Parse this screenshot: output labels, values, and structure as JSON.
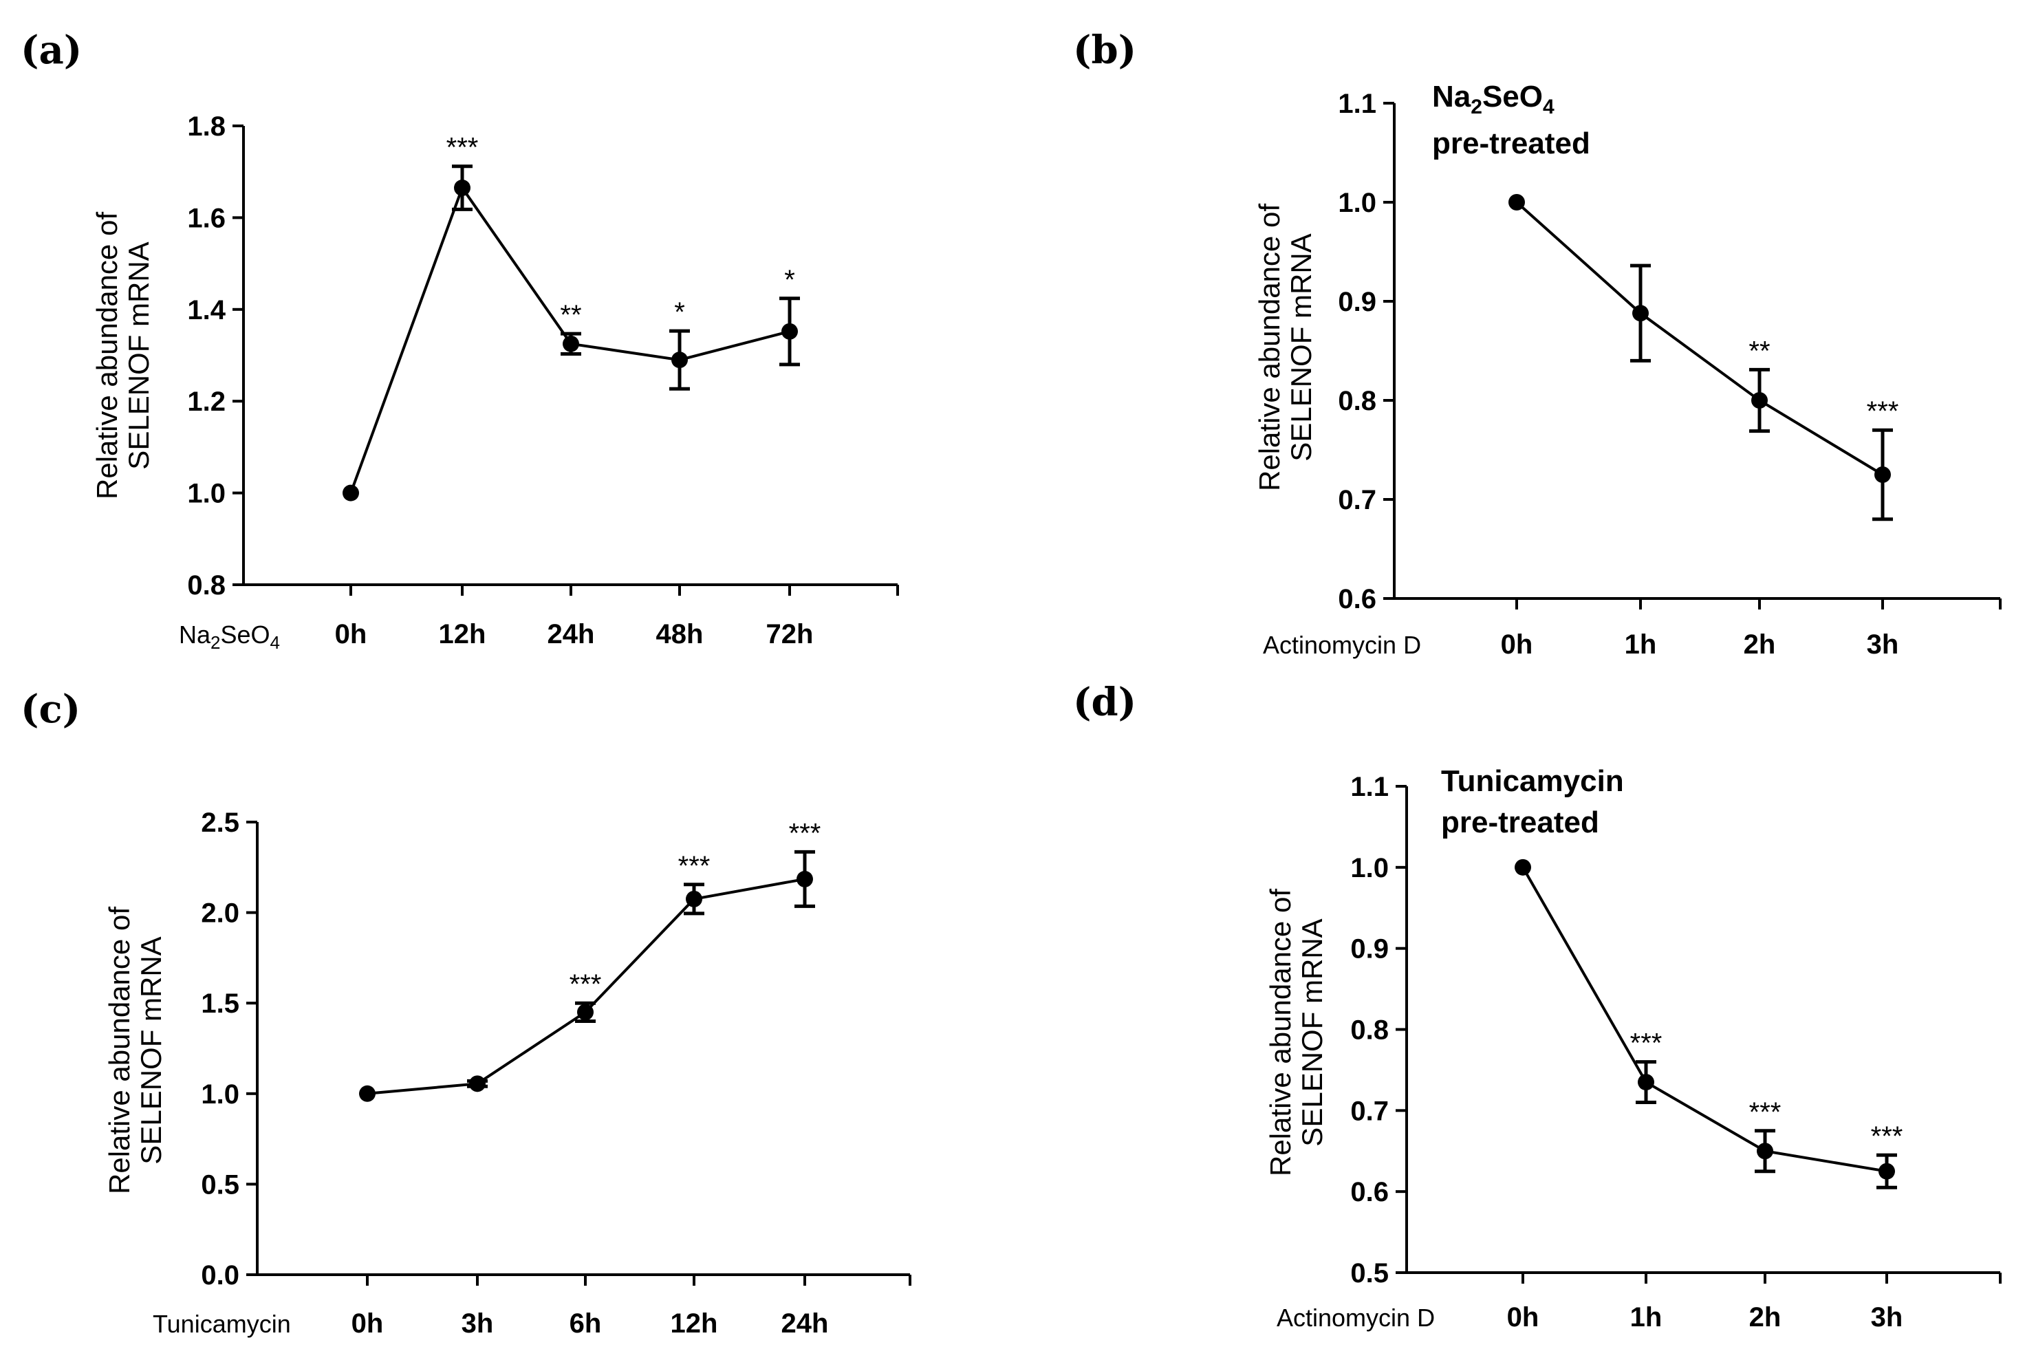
{
  "chart_data": [
    {
      "id": "a",
      "panel_label": "(a)",
      "type": "line",
      "ylabel_lines": [
        "Relative abundance of",
        "SELENOF mRNA"
      ],
      "x_prefix": {
        "main": "Na",
        "sub1": "2",
        "mid": "SeO",
        "sub2": "4"
      },
      "categories": [
        "0h",
        "12h",
        "24h",
        "48h",
        "72h"
      ],
      "values": [
        1.0,
        1.665,
        1.325,
        1.29,
        1.352
      ],
      "errors": [
        0,
        0.047,
        0.022,
        0.063,
        0.072
      ],
      "stars": [
        "",
        "***",
        "**",
        "*",
        "*"
      ],
      "ylim": [
        0.8,
        1.8
      ],
      "yticks": [
        0.8,
        1.0,
        1.2,
        1.4,
        1.6,
        1.8
      ],
      "ytick_labels": [
        "0.8",
        "1.0",
        "1.2",
        "1.4",
        "1.6",
        "1.8"
      ]
    },
    {
      "id": "b",
      "panel_label": "(b)",
      "type": "line",
      "ylabel_lines": [
        "Relative abundance of",
        "SELENOF mRNA"
      ],
      "x_prefix": {
        "main": "Actinomycin D"
      },
      "annotation": {
        "main": "Na",
        "sub1": "2",
        "mid": "SeO",
        "sub2": "4",
        "line2": "pre-treated"
      },
      "categories": [
        "0h",
        "1h",
        "2h",
        "3h"
      ],
      "values": [
        1.0,
        0.888,
        0.8,
        0.725
      ],
      "errors": [
        0,
        0.048,
        0.031,
        0.045
      ],
      "stars": [
        "",
        "",
        "**",
        "***"
      ],
      "ylim": [
        0.6,
        1.1
      ],
      "yticks": [
        0.6,
        0.7,
        0.8,
        0.9,
        1.0,
        1.1
      ],
      "ytick_labels": [
        "0.6",
        "0.7",
        "0.8",
        "0.9",
        "1.0",
        "1.1"
      ]
    },
    {
      "id": "c",
      "panel_label": "(c)",
      "type": "line",
      "ylabel_lines": [
        "Relative abundance of",
        "SELENOF mRNA"
      ],
      "x_prefix": {
        "main": "Tunicamycin"
      },
      "categories": [
        "0h",
        "3h",
        "6h",
        "12h",
        "24h"
      ],
      "values": [
        1.0,
        1.055,
        1.45,
        2.075,
        2.185
      ],
      "errors": [
        0,
        0.015,
        0.05,
        0.08,
        0.15
      ],
      "stars": [
        "",
        "",
        "***",
        "***",
        "***"
      ],
      "ylim": [
        0.0,
        2.5
      ],
      "yticks": [
        0.0,
        0.5,
        1.0,
        1.5,
        2.0,
        2.5
      ],
      "ytick_labels": [
        "0.0",
        "0.5",
        "1.0",
        "1.5",
        "2.0",
        "2.5"
      ]
    },
    {
      "id": "d",
      "panel_label": "(d)",
      "type": "line",
      "ylabel_lines": [
        "Relative abundance of",
        "SELENOF mRNA"
      ],
      "x_prefix": {
        "main": "Actinomycin D"
      },
      "annotation": {
        "main": "Tunicamycin",
        "line2": "pre-treated"
      },
      "categories": [
        "0h",
        "1h",
        "2h",
        "3h"
      ],
      "values": [
        1.0,
        0.735,
        0.65,
        0.625
      ],
      "errors": [
        0,
        0.025,
        0.025,
        0.02
      ],
      "stars": [
        "",
        "***",
        "***",
        "***"
      ],
      "ylim": [
        0.5,
        1.1
      ],
      "yticks": [
        0.5,
        0.6,
        0.7,
        0.8,
        0.9,
        1.0,
        1.1
      ],
      "ytick_labels": [
        "0.5",
        "0.6",
        "0.7",
        "0.8",
        "0.9",
        "1.0",
        "1.1"
      ]
    }
  ]
}
